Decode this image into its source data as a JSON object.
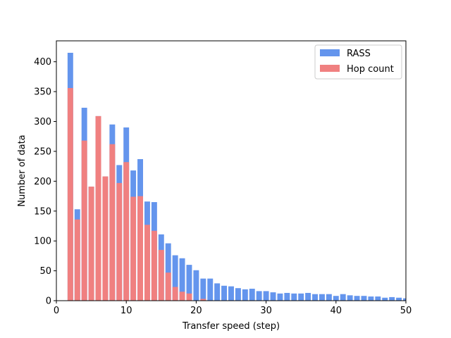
{
  "chart_data": {
    "type": "bar",
    "xlabel": "Transfer speed (step)",
    "ylabel": "Number of data",
    "xlim": [
      0,
      50
    ],
    "ylim": [
      0,
      435
    ],
    "xticks": [
      0,
      10,
      20,
      30,
      40,
      50
    ],
    "yticks": [
      0,
      50,
      100,
      150,
      200,
      250,
      300,
      350,
      400
    ],
    "grid": false,
    "legend_position": "top-right",
    "x": [
      2,
      3,
      4,
      5,
      6,
      7,
      8,
      9,
      10,
      11,
      12,
      13,
      14,
      15,
      16,
      17,
      18,
      19,
      20,
      21,
      22,
      23,
      24,
      25,
      26,
      27,
      28,
      29,
      30,
      31,
      32,
      33,
      34,
      35,
      36,
      37,
      38,
      39,
      40,
      41,
      42,
      43,
      44,
      45,
      46,
      47,
      48,
      49,
      50
    ],
    "series": [
      {
        "name": "RASS",
        "color": "#6495ED",
        "values": [
          415,
          153,
          323,
          191,
          309,
          208,
          295,
          227,
          290,
          218,
          237,
          166,
          165,
          111,
          96,
          76,
          71,
          60,
          51,
          37,
          37,
          29,
          25,
          24,
          21,
          19,
          20,
          16,
          16,
          14,
          12,
          13,
          12,
          12,
          13,
          11,
          11,
          11,
          8,
          11,
          9,
          8,
          8,
          7,
          7,
          5,
          6,
          5,
          4
        ]
      },
      {
        "name": "Hop count",
        "color": "#F08080",
        "values": [
          356,
          136,
          268,
          191,
          309,
          208,
          262,
          197,
          232,
          174,
          175,
          127,
          117,
          85,
          47,
          23,
          15,
          12,
          0,
          3,
          0,
          0,
          0,
          0,
          0,
          0,
          0,
          0,
          0,
          0,
          0,
          0,
          0,
          0,
          0,
          0,
          0,
          0,
          0,
          0,
          0,
          0,
          0,
          0,
          0,
          0,
          0,
          0,
          0
        ]
      }
    ]
  }
}
